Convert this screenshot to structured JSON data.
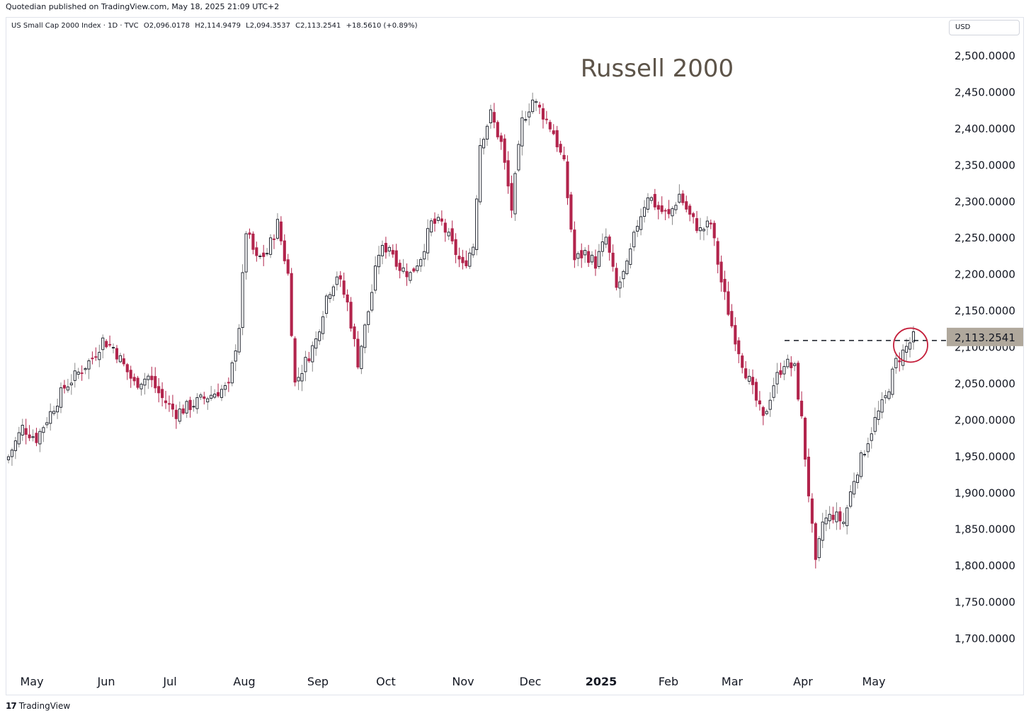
{
  "header": {
    "published": "Quotedian published on TradingView.com, May 18, 2025 21:09 UTC+2"
  },
  "legend": {
    "symbol": "US Small Cap 2000 Index · 1D · TVC",
    "open": "O2,096.0178",
    "high": "H2,114.9479",
    "low": "L2,094.3537",
    "close": "C2,113.2541",
    "change": "+18.5610 (+0.89%)"
  },
  "currency": "USD",
  "footer": {
    "logo_mark": "17",
    "logo_text": "TradingView"
  },
  "colors": {
    "up": "#131722",
    "down": "#b2244c",
    "wick": "#8a8a8a",
    "circle": "#c41e3a",
    "last_price_bg": "#b0a89c"
  },
  "chart_data": {
    "type": "candlestick",
    "title": "Russell 2000",
    "x_ticks": [
      "May",
      "Jun",
      "Jul",
      "Aug",
      "Sep",
      "Oct",
      "Nov",
      "Dec",
      "2025",
      "Feb",
      "Mar",
      "Apr",
      "May"
    ],
    "y_ticks": [
      "2,500.0000",
      "2,450.0000",
      "2,400.0000",
      "2,350.0000",
      "2,300.0000",
      "2,250.0000",
      "2,200.0000",
      "2,150.0000",
      "2,100.0000",
      "2,050.0000",
      "2,000.0000",
      "1,950.0000",
      "1,900.0000",
      "1,850.0000",
      "1,800.0000",
      "1,750.0000",
      "1,700.0000"
    ],
    "ylim": [
      1700,
      2500
    ],
    "last_price": {
      "label": "2,113.2541",
      "value": 2113.2541
    },
    "resistance_level": 2113.2541,
    "highlight_circle": {
      "value": 2103
    },
    "close_path": [
      [
        0,
        1950
      ],
      [
        4,
        1990
      ],
      [
        8,
        1975
      ],
      [
        12,
        2010
      ],
      [
        16,
        2045
      ],
      [
        20,
        2065
      ],
      [
        24,
        2085
      ],
      [
        27,
        2110
      ],
      [
        30,
        2100
      ],
      [
        33,
        2075
      ],
      [
        36,
        2050
      ],
      [
        40,
        2060
      ],
      [
        44,
        2030
      ],
      [
        48,
        2010
      ],
      [
        52,
        2020
      ],
      [
        56,
        2030
      ],
      [
        60,
        2040
      ],
      [
        63,
        2045
      ],
      [
        66,
        2130
      ],
      [
        68,
        2260
      ],
      [
        71,
        2220
      ],
      [
        74,
        2230
      ],
      [
        77,
        2270
      ],
      [
        80,
        2200
      ],
      [
        82,
        2050
      ],
      [
        85,
        2080
      ],
      [
        88,
        2110
      ],
      [
        91,
        2170
      ],
      [
        94,
        2200
      ],
      [
        97,
        2160
      ],
      [
        100,
        2080
      ],
      [
        103,
        2150
      ],
      [
        106,
        2230
      ],
      [
        109,
        2240
      ],
      [
        112,
        2210
      ],
      [
        115,
        2200
      ],
      [
        118,
        2225
      ],
      [
        121,
        2270
      ],
      [
        124,
        2270
      ],
      [
        127,
        2240
      ],
      [
        130,
        2210
      ],
      [
        133,
        2240
      ],
      [
        135,
        2380
      ],
      [
        138,
        2420
      ],
      [
        141,
        2380
      ],
      [
        144,
        2290
      ],
      [
        147,
        2410
      ],
      [
        150,
        2440
      ],
      [
        153,
        2420
      ],
      [
        156,
        2395
      ],
      [
        159,
        2350
      ],
      [
        162,
        2220
      ],
      [
        165,
        2230
      ],
      [
        168,
        2215
      ],
      [
        171,
        2250
      ],
      [
        174,
        2180
      ],
      [
        177,
        2210
      ],
      [
        180,
        2270
      ],
      [
        183,
        2310
      ],
      [
        186,
        2290
      ],
      [
        189,
        2280
      ],
      [
        192,
        2310
      ],
      [
        195,
        2280
      ],
      [
        198,
        2260
      ],
      [
        201,
        2270
      ],
      [
        204,
        2190
      ],
      [
        207,
        2130
      ],
      [
        210,
        2080
      ],
      [
        213,
        2040
      ],
      [
        216,
        2000
      ],
      [
        219,
        2050
      ],
      [
        222,
        2080
      ],
      [
        225,
        2070
      ],
      [
        227,
        2000
      ],
      [
        229,
        1900
      ],
      [
        231,
        1800
      ],
      [
        233,
        1860
      ],
      [
        236,
        1870
      ],
      [
        239,
        1860
      ],
      [
        242,
        1920
      ],
      [
        245,
        1960
      ],
      [
        248,
        2000
      ],
      [
        251,
        2030
      ],
      [
        254,
        2080
      ],
      [
        257,
        2100
      ],
      [
        259,
        2113
      ]
    ]
  }
}
